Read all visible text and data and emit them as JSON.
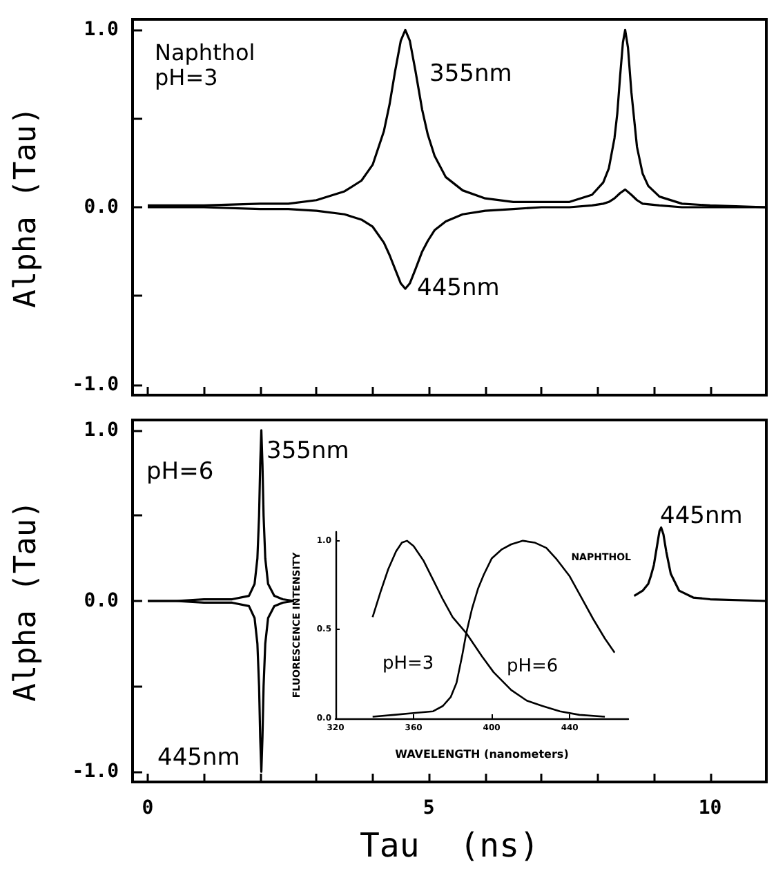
{
  "chart_data": [
    {
      "type": "line",
      "ylabel": "Alpha (Tau)",
      "tick_labels": "y",
      "xlim": [
        -0.27,
        11
      ],
      "xticks": [
        0,
        {
          "value": 1,
          "label": null
        },
        {
          "value": 2,
          "label": null
        },
        {
          "value": 3,
          "label": null
        },
        {
          "value": 4,
          "label": null
        },
        5,
        {
          "value": 6,
          "label": null
        },
        {
          "value": 7,
          "label": null
        },
        {
          "value": 8,
          "label": null
        },
        {
          "value": 9,
          "label": null
        },
        10,
        {
          "value": 11,
          "label": null
        }
      ],
      "ylim": [
        -1.06,
        1.06
      ],
      "yticks": [
        {
          "value": -1,
          "label": "-1.0"
        },
        {
          "value": -0.5,
          "label": null
        },
        {
          "value": 0,
          "label": "0.0"
        },
        {
          "value": 0.5,
          "label": null
        },
        {
          "value": 1,
          "label": "1.0"
        }
      ],
      "annotations": [
        "Naphthol",
        "pH=3",
        "355nm",
        "445nm"
      ],
      "series": [
        {
          "color": "#000000",
          "x": [
            0,
            1,
            2,
            2.5,
            3,
            3.5,
            3.8,
            4.0,
            4.2,
            4.3,
            4.4,
            4.5,
            4.58,
            4.66,
            4.76,
            4.88,
            4.98,
            5.1,
            5.3,
            5.6,
            6,
            6.5,
            7,
            7.5,
            7.9,
            8.1,
            8.2,
            8.3,
            8.35,
            8.4,
            8.45,
            8.49,
            8.54,
            8.6,
            8.7,
            8.8,
            8.9,
            9.1,
            9.5,
            10,
            11
          ],
          "values": [
            0.01,
            0.01,
            0.02,
            0.02,
            0.04,
            0.09,
            0.15,
            0.24,
            0.43,
            0.58,
            0.77,
            0.94,
            1.0,
            0.94,
            0.77,
            0.55,
            0.41,
            0.29,
            0.17,
            0.095,
            0.05,
            0.03,
            0.03,
            0.03,
            0.07,
            0.14,
            0.22,
            0.39,
            0.53,
            0.74,
            0.93,
            1.0,
            0.9,
            0.65,
            0.34,
            0.19,
            0.12,
            0.06,
            0.02,
            0.01,
            0.0
          ]
        },
        {
          "color": "#000000",
          "x": [
            0,
            1,
            2,
            2.5,
            3,
            3.5,
            3.8,
            4.0,
            4.2,
            4.3,
            4.4,
            4.5,
            4.58,
            4.66,
            4.76,
            4.88,
            4.98,
            5.1,
            5.3,
            5.6,
            6,
            6.5,
            7,
            7.5,
            7.9,
            8.1,
            8.2,
            8.3,
            8.4,
            8.49,
            8.6,
            8.7,
            8.8,
            9.1,
            9.5,
            11
          ],
          "values": [
            0,
            0,
            -0.01,
            -0.01,
            -0.02,
            -0.04,
            -0.07,
            -0.11,
            -0.2,
            -0.27,
            -0.35,
            -0.43,
            -0.46,
            -0.43,
            -0.35,
            -0.25,
            -0.19,
            -0.13,
            -0.08,
            -0.04,
            -0.02,
            -0.01,
            0,
            0,
            0.01,
            0.02,
            0.03,
            0.05,
            0.08,
            0.1,
            0.07,
            0.04,
            0.02,
            0.01,
            0,
            0
          ]
        }
      ]
    },
    {
      "type": "line",
      "ylabel": "Alpha (Tau)",
      "xlabel": "Tau  (ns)",
      "xlim": [
        -0.27,
        11
      ],
      "xticks": [
        0,
        {
          "value": 1,
          "label": null
        },
        {
          "value": 2,
          "label": null
        },
        {
          "value": 3,
          "label": null
        },
        {
          "value": 4,
          "label": null
        },
        5,
        {
          "value": 6,
          "label": null
        },
        {
          "value": 7,
          "label": null
        },
        {
          "value": 8,
          "label": null
        },
        {
          "value": 9,
          "label": null
        },
        10,
        {
          "value": 11,
          "label": null
        }
      ],
      "ylim": [
        -1.06,
        1.06
      ],
      "yticks": [
        {
          "value": -1,
          "label": "-1.0"
        },
        {
          "value": -0.5,
          "label": null
        },
        {
          "value": 0,
          "label": "0.0"
        },
        {
          "value": 0.5,
          "label": null
        },
        {
          "value": 1,
          "label": "1.0"
        }
      ],
      "annotations": [
        "pH=6",
        "355nm",
        "445nm",
        "445nm"
      ],
      "series": [
        {
          "color": "#000000",
          "x": [
            0,
            0.5,
            1,
            1.5,
            1.8,
            1.9,
            1.95,
            1.98,
            2.0,
            2.02,
            2.04,
            2.06,
            2.09,
            2.14,
            2.25,
            2.4,
            2.6
          ],
          "values": [
            0,
            0,
            0.01,
            0.01,
            0.03,
            0.1,
            0.25,
            0.5,
            0.8,
            1.0,
            0.8,
            0.5,
            0.25,
            0.1,
            0.03,
            0.01,
            0
          ]
        },
        {
          "color": "#000000",
          "x": [
            0,
            0.5,
            1,
            1.5,
            1.8,
            1.9,
            1.95,
            1.98,
            2.0,
            2.02,
            2.04,
            2.06,
            2.09,
            2.14,
            2.25,
            2.4,
            2.6,
            5,
            8.65,
            8.8,
            8.9,
            8.95,
            9.0,
            9.05,
            9.1,
            9.13,
            9.17,
            9.22,
            9.3,
            9.45,
            9.7,
            10,
            11
          ],
          "values": [
            0,
            0,
            -0.01,
            -0.01,
            -0.03,
            -0.1,
            -0.25,
            -0.5,
            -0.8,
            -1.0,
            -0.8,
            -0.5,
            -0.25,
            -0.1,
            -0.03,
            -0.01,
            0,
            null,
            0.03,
            0.06,
            0.1,
            0.15,
            0.21,
            0.31,
            0.41,
            0.43,
            0.39,
            0.29,
            0.16,
            0.06,
            0.02,
            0.01,
            0
          ]
        }
      ]
    },
    {
      "type": "line",
      "ylabel": "FLUORESCENCE INTENSITY",
      "xlabel": "WAVELENGTH (nanometers)",
      "xlim": [
        320,
        470
      ],
      "xticks": [
        320,
        360,
        400,
        440
      ],
      "ylim": [
        0,
        1.05
      ],
      "yticks": [
        {
          "value": 0,
          "label": "0.0"
        },
        0.5,
        {
          "value": 1,
          "label": "1.0"
        }
      ],
      "annotations": [
        "NAPHTHOL",
        "pH=3",
        "pH=6"
      ],
      "series": [
        {
          "color": "#000000",
          "x": [
            339,
            343,
            347,
            351,
            354,
            356.6,
            360,
            365,
            370,
            375,
            380,
            387,
            395,
            401,
            410,
            418,
            426,
            435,
            445,
            458
          ],
          "values": [
            0.57,
            0.71,
            0.84,
            0.94,
            0.99,
            1.0,
            0.97,
            0.89,
            0.78,
            0.67,
            0.57,
            0.48,
            0.35,
            0.26,
            0.16,
            0.1,
            0.07,
            0.04,
            0.02,
            0.01
          ]
        },
        {
          "color": "#000000",
          "x": [
            339,
            350,
            360,
            370,
            375,
            379,
            382,
            385,
            387,
            390,
            393,
            396,
            400,
            405,
            410,
            416,
            422,
            428,
            433,
            440,
            446,
            452,
            458,
            463
          ],
          "values": [
            0.01,
            0.02,
            0.03,
            0.04,
            0.07,
            0.12,
            0.2,
            0.36,
            0.48,
            0.62,
            0.73,
            0.81,
            0.9,
            0.95,
            0.98,
            1.0,
            0.99,
            0.96,
            0.9,
            0.8,
            0.68,
            0.56,
            0.45,
            0.37
          ]
        }
      ]
    }
  ]
}
